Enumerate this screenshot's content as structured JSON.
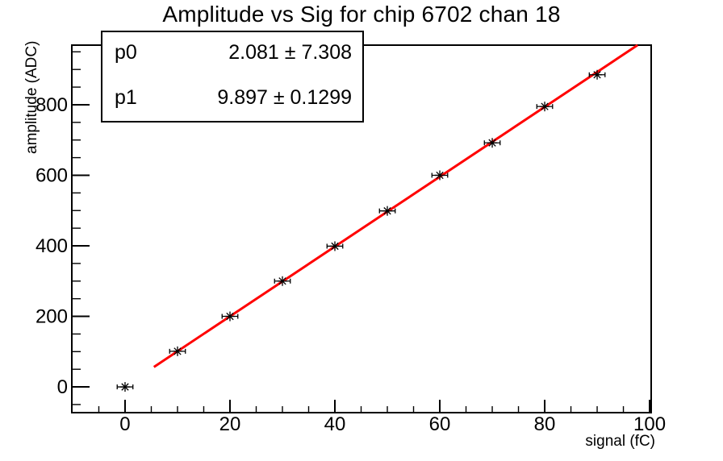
{
  "title": "Amplitude vs Sig for chip 6702 chan 18",
  "colors": {
    "background": "#ffffff",
    "frame": "#000000",
    "text": "#000000",
    "fit_line": "#ff0000",
    "marker": "#000000"
  },
  "stats_box": {
    "rows": [
      {
        "param": "p0",
        "value": "2.081 ± 7.308"
      },
      {
        "param": "p1",
        "value": "9.897 ± 0.1299"
      }
    ]
  },
  "chart_data": {
    "type": "scatter",
    "title": "Amplitude vs Sig for chip 6702 chan 18",
    "xlabel": "signal (fC)",
    "ylabel": "amplitude (ADC)",
    "x": [
      0,
      10,
      20,
      30,
      40,
      50,
      60,
      70,
      80,
      90
    ],
    "y": [
      0,
      101,
      200,
      300,
      399,
      499,
      600,
      692,
      795,
      885
    ],
    "x_error": 1.5,
    "marker_style": "star-with-x-error-bars",
    "fit": {
      "type": "linear",
      "label": "p0 + p1*x",
      "p0": 2.081,
      "p0_err": 7.308,
      "p1": 9.897,
      "p1_err": 0.1299,
      "x_start": 5.5,
      "x_end": 98.5
    },
    "xlim": [
      -10.15,
      100.3
    ],
    "ylim": [
      -73,
      969
    ],
    "x_major_ticks": [
      0,
      20,
      40,
      60,
      80,
      100
    ],
    "x_minor_ticks": [
      -5,
      5,
      10,
      15,
      25,
      30,
      35,
      45,
      50,
      55,
      65,
      70,
      75,
      85,
      90,
      95
    ],
    "y_major_ticks": [
      0,
      200,
      400,
      600,
      800
    ],
    "y_minor_ticks": [
      -50,
      50,
      100,
      150,
      250,
      300,
      350,
      450,
      500,
      550,
      650,
      700,
      750,
      850,
      900,
      950
    ],
    "grid": false,
    "legend": "none"
  }
}
